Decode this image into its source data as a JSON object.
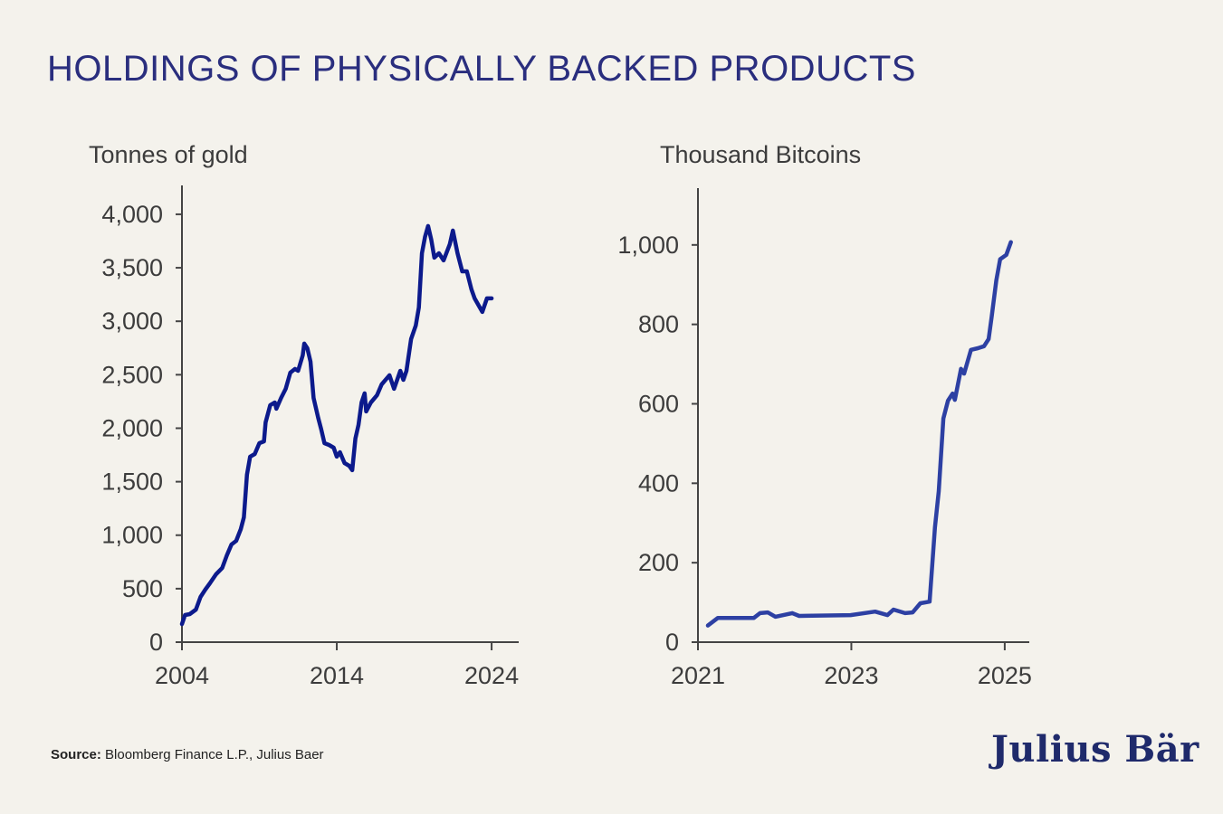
{
  "title": "HOLDINGS OF PHYSICALLY BACKED PRODUCTS",
  "source_label": "Source:",
  "source_text": " Bloomberg Finance L.P., Julius Baer",
  "logo": "Julius Bär",
  "colors": {
    "background": "#f4f2ec",
    "title": "#2a2e7e",
    "gold_line": "#0c1a8c",
    "bitcoin_line": "#2d40a3",
    "axis": "#444444"
  },
  "chart_data": [
    {
      "type": "line",
      "ylabel": "Tonnes of gold",
      "xlim": [
        2004,
        2025.75
      ],
      "ylim": [
        0,
        4270
      ],
      "xticks": [
        2004,
        2014,
        2024
      ],
      "xtick_labels": [
        "2004",
        "2014",
        "2024"
      ],
      "yticks": [
        0,
        500,
        1000,
        1500,
        2000,
        2500,
        3000,
        3500,
        4000
      ],
      "ytick_labels": [
        "0",
        "500",
        "1,000",
        "1,500",
        "2,000",
        "2,500",
        "3,000",
        "3,500",
        "4,000"
      ],
      "grid": false,
      "series": [
        {
          "x": [
            2004.0,
            2004.2,
            2004.5,
            2004.9,
            2005.2,
            2005.5,
            2005.8,
            2006.2,
            2006.6,
            2006.9,
            2007.2,
            2007.5,
            2007.8,
            2008.0,
            2008.2,
            2008.4,
            2008.7,
            2009.0,
            2009.3,
            2009.4,
            2009.7,
            2010.0,
            2010.1,
            2010.4,
            2010.7,
            2011.0,
            2011.3,
            2011.5,
            2011.8,
            2011.9,
            2012.1,
            2012.3,
            2012.5,
            2012.8,
            2013.0,
            2013.2,
            2013.5,
            2013.8,
            2014.0,
            2014.2,
            2014.5,
            2014.8,
            2015.0,
            2015.2,
            2015.4,
            2015.6,
            2015.8,
            2015.9,
            2016.2,
            2016.6,
            2016.9,
            2017.4,
            2017.7,
            2018.1,
            2018.3,
            2018.5,
            2018.8,
            2019.1,
            2019.3,
            2019.5,
            2019.7,
            2019.9,
            2020.1,
            2020.3,
            2020.6,
            2020.9,
            2021.3,
            2021.5,
            2021.8,
            2022.1,
            2022.4,
            2022.7,
            2022.9,
            2023.4,
            2023.7,
            2024.0
          ],
          "y": [
            169,
            254,
            262,
            304,
            423,
            490,
            550,
            634,
            694,
            812,
            913,
            947,
            1057,
            1167,
            1565,
            1734,
            1759,
            1860,
            1877,
            2055,
            2216,
            2241,
            2182,
            2283,
            2368,
            2520,
            2554,
            2537,
            2681,
            2791,
            2748,
            2622,
            2283,
            2097,
            1987,
            1860,
            1843,
            1818,
            1734,
            1776,
            1674,
            1649,
            1607,
            1903,
            2030,
            2241,
            2326,
            2157,
            2241,
            2309,
            2410,
            2495,
            2368,
            2537,
            2452,
            2537,
            2833,
            2960,
            3129,
            3636,
            3789,
            3890,
            3763,
            3594,
            3636,
            3569,
            3721,
            3848,
            3636,
            3467,
            3467,
            3298,
            3214,
            3087,
            3214,
            3214
          ]
        }
      ]
    },
    {
      "type": "line",
      "ylabel": "Thousand Bitcoins",
      "xlim": [
        2021,
        2025.32
      ],
      "ylim": [
        0,
        1143
      ],
      "xticks": [
        2021,
        2023,
        2025
      ],
      "xtick_labels": [
        "2021",
        "2023",
        "2025"
      ],
      "yticks": [
        0,
        200,
        400,
        600,
        800,
        1000
      ],
      "ytick_labels": [
        "0",
        "200",
        "400",
        "600",
        "800",
        "1,000"
      ],
      "grid": false,
      "series": [
        {
          "x": [
            2021.13,
            2021.26,
            2021.73,
            2021.81,
            2021.91,
            2022.01,
            2022.23,
            2022.32,
            2022.99,
            2023.31,
            2023.47,
            2023.55,
            2023.7,
            2023.8,
            2023.9,
            2024.02,
            2024.09,
            2024.14,
            2024.2,
            2024.26,
            2024.32,
            2024.35,
            2024.43,
            2024.47,
            2024.56,
            2024.65,
            2024.73,
            2024.79,
            2024.83,
            2024.89,
            2024.94,
            2025.02,
            2025.08
          ],
          "y": [
            42,
            61,
            61,
            73,
            75,
            64,
            73,
            66,
            68,
            77,
            68,
            82,
            73,
            75,
            98,
            102,
            289,
            380,
            563,
            608,
            626,
            610,
            688,
            676,
            736,
            740,
            745,
            763,
            820,
            911,
            964,
            975,
            1007
          ]
        }
      ]
    }
  ]
}
